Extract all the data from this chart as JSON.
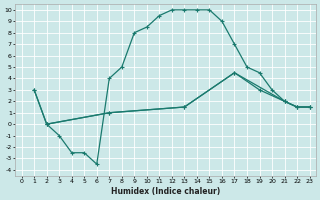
{
  "xlabel": "Humidex (Indice chaleur)",
  "bg_color": "#cce8e8",
  "grid_color": "#ffffff",
  "line_color": "#1a7a6e",
  "xlim": [
    -0.5,
    23.5
  ],
  "ylim": [
    -4.5,
    10.5
  ],
  "xticks": [
    0,
    1,
    2,
    3,
    4,
    5,
    6,
    7,
    8,
    9,
    10,
    11,
    12,
    13,
    14,
    15,
    16,
    17,
    18,
    19,
    20,
    21,
    22,
    23
  ],
  "yticks": [
    10,
    9,
    8,
    7,
    6,
    5,
    4,
    3,
    2,
    1,
    0,
    -1,
    -2,
    -3,
    -4
  ],
  "line1_x": [
    1,
    2,
    3,
    4,
    5,
    6,
    7,
    8,
    9,
    10,
    11,
    12,
    13,
    14,
    15,
    16,
    17,
    18,
    19,
    20,
    21,
    22,
    23
  ],
  "line1_y": [
    3,
    0,
    -1,
    -2.5,
    -2.5,
    -3.5,
    4,
    5,
    8,
    8.5,
    9.5,
    10,
    10,
    10,
    10,
    9,
    7,
    5,
    4.5,
    3,
    2,
    1.5,
    1.5
  ],
  "line2_x": [
    1,
    2,
    7,
    13,
    17,
    19,
    21,
    22,
    23
  ],
  "line2_y": [
    3,
    0,
    1,
    1.5,
    4.5,
    3,
    2,
    1.5,
    1.5
  ],
  "line3_x": [
    2,
    7,
    13,
    17,
    21,
    22,
    23
  ],
  "line3_y": [
    0,
    1,
    1.5,
    4.5,
    2,
    1.5,
    1.5
  ]
}
